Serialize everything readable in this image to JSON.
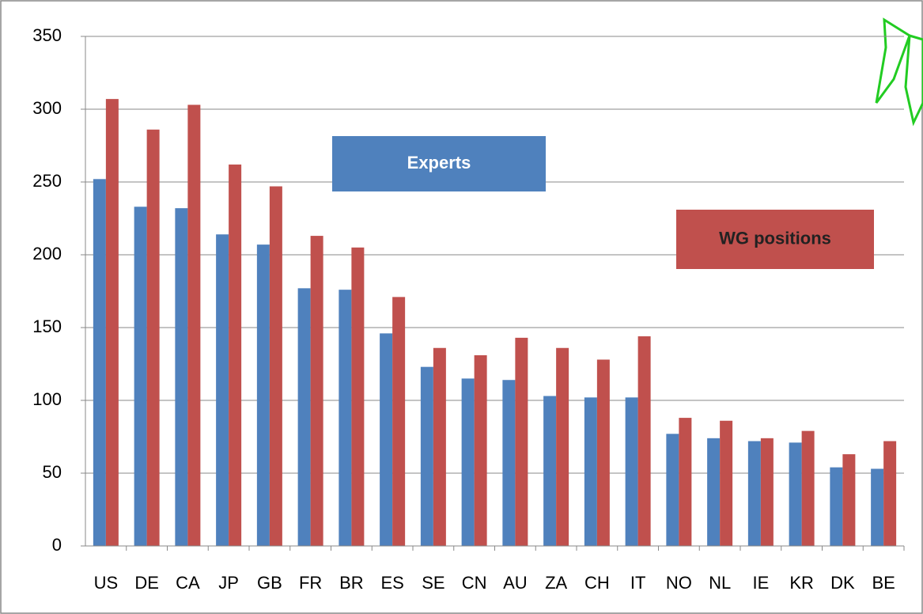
{
  "chart_data": {
    "type": "bar",
    "categories": [
      "US",
      "DE",
      "CA",
      "JP",
      "GB",
      "FR",
      "BR",
      "ES",
      "SE",
      "CN",
      "AU",
      "ZA",
      "CH",
      "IT",
      "NO",
      "NL",
      "IE",
      "KR",
      "DK",
      "BE"
    ],
    "series": [
      {
        "name": "Experts",
        "color": "#4f81bd",
        "values": [
          252,
          233,
          232,
          214,
          207,
          177,
          176,
          146,
          123,
          115,
          114,
          103,
          102,
          102,
          77,
          74,
          72,
          71,
          54,
          53
        ]
      },
      {
        "name": "WG positions",
        "color": "#c0504d",
        "values": [
          307,
          286,
          303,
          262,
          247,
          213,
          205,
          171,
          136,
          131,
          143,
          136,
          128,
          144,
          88,
          86,
          74,
          79,
          63,
          72
        ]
      }
    ],
    "ylim": [
      0,
      350
    ],
    "yticks": [
      0,
      50,
      100,
      150,
      200,
      250,
      300,
      350
    ],
    "grid": true
  }
}
